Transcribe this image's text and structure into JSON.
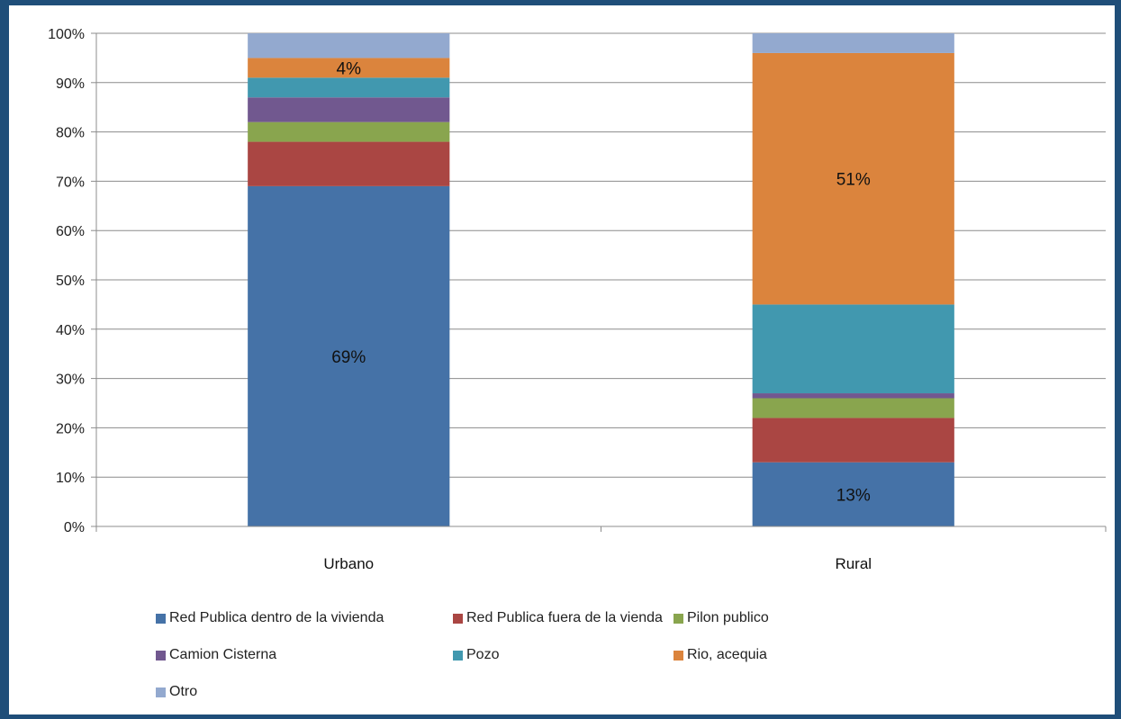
{
  "chart_data": {
    "type": "bar",
    "stacked": true,
    "percent_stacked": true,
    "title": "",
    "xlabel": "",
    "ylabel": "",
    "ylim": [
      0,
      100
    ],
    "yticks": [
      "0%",
      "10%",
      "20%",
      "30%",
      "40%",
      "50%",
      "60%",
      "70%",
      "80%",
      "90%",
      "100%"
    ],
    "grid": true,
    "legend_position": "bottom",
    "categories": [
      "Urbano",
      "Rural"
    ],
    "series": [
      {
        "name": "Red Publica dentro de la vivienda",
        "color": "#4572a7",
        "values": [
          69,
          13
        ],
        "labels": [
          "69%",
          "13%"
        ]
      },
      {
        "name": "Red Publica fuera de la vienda",
        "color": "#aa4643",
        "values": [
          9,
          9
        ],
        "labels": [
          "",
          ""
        ]
      },
      {
        "name": "Pilon publico",
        "color": "#89a54e",
        "values": [
          4,
          4
        ],
        "labels": [
          "",
          ""
        ]
      },
      {
        "name": "Camion Cisterna",
        "color": "#71588f",
        "values": [
          5,
          1
        ],
        "labels": [
          "",
          ""
        ]
      },
      {
        "name": "Pozo",
        "color": "#4198af",
        "values": [
          4,
          18
        ],
        "labels": [
          "",
          ""
        ]
      },
      {
        "name": "Rio, acequia",
        "color": "#db843d",
        "values": [
          4,
          51
        ],
        "labels": [
          "4%",
          "51%"
        ]
      },
      {
        "name": "Otro",
        "color": "#93a9cf",
        "values": [
          5,
          4
        ],
        "labels": [
          "",
          ""
        ]
      }
    ]
  }
}
